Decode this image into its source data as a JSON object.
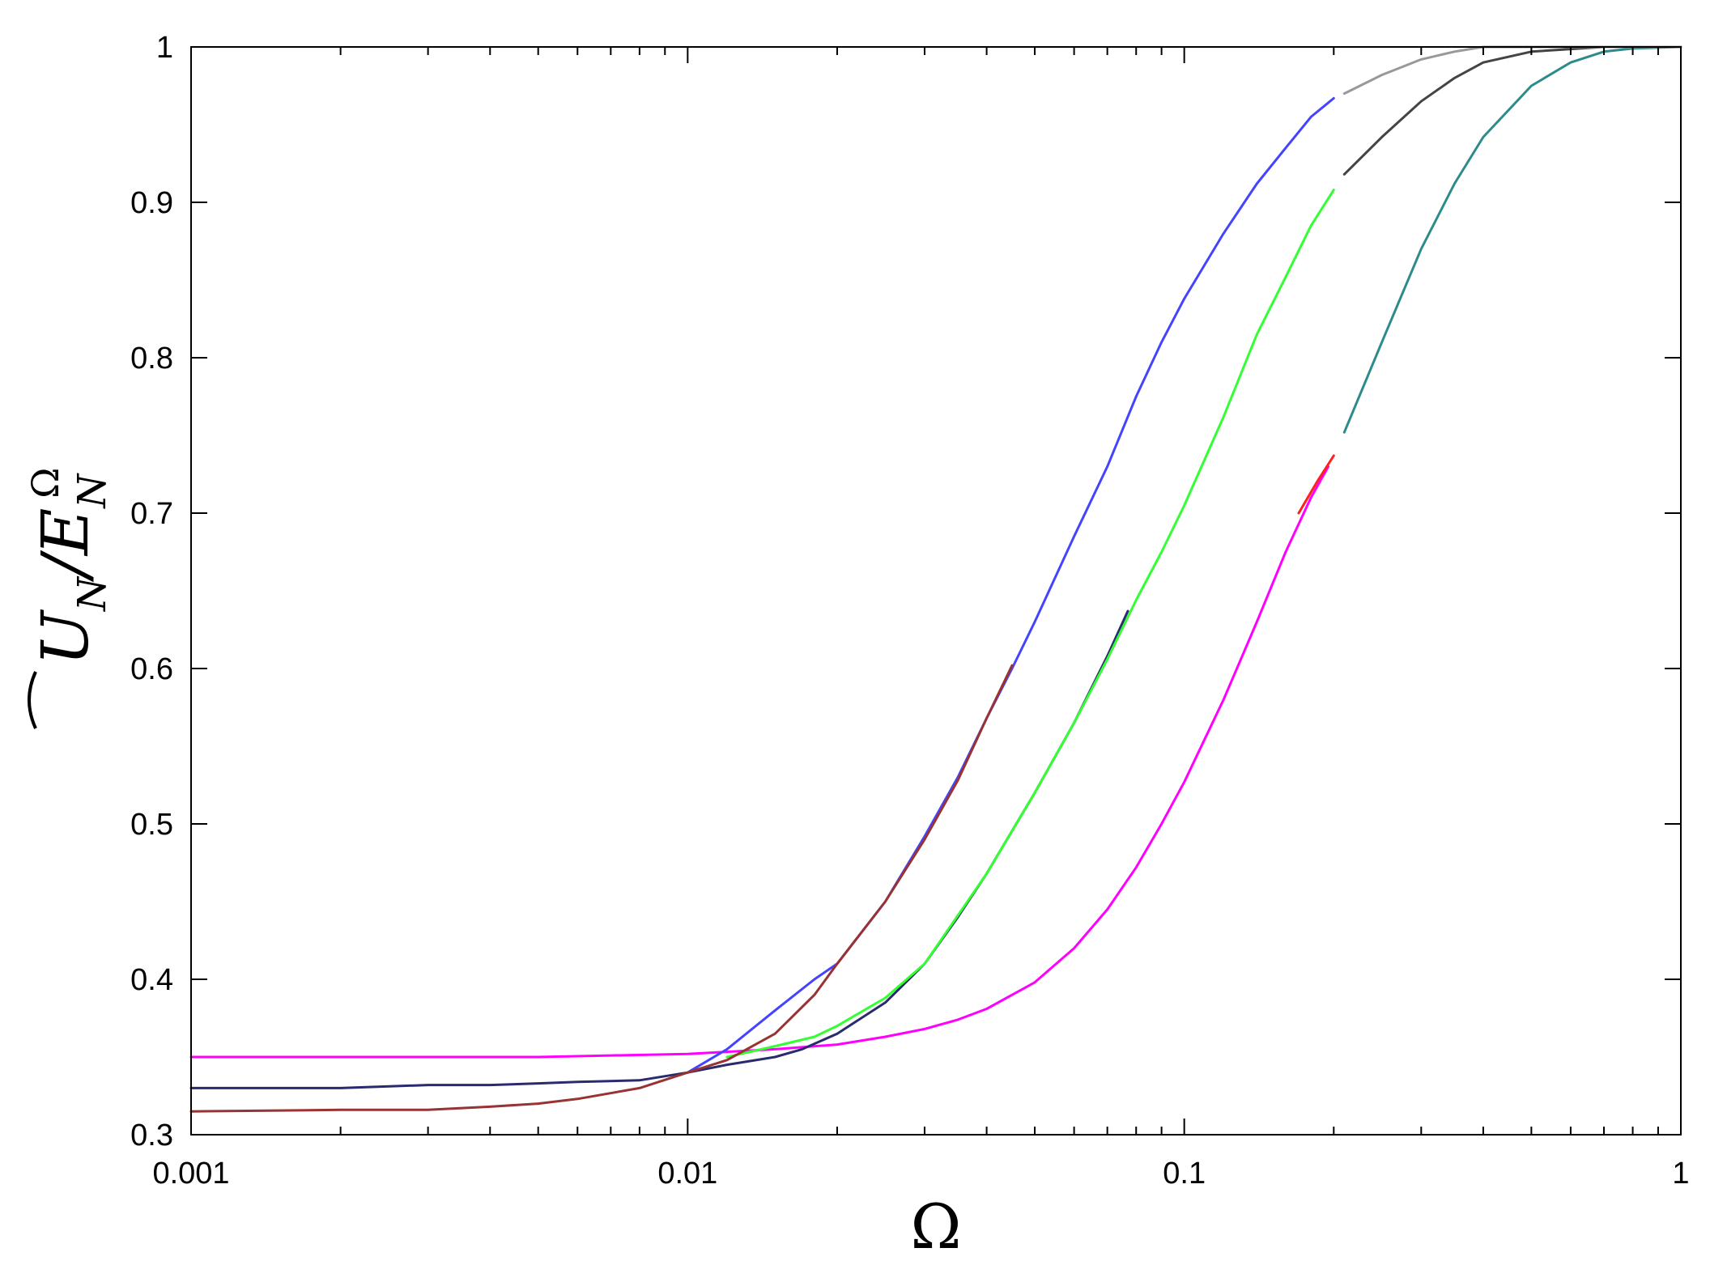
{
  "chart_data": {
    "type": "line",
    "xscale": "log",
    "xlim": [
      0.001,
      1
    ],
    "ylim": [
      0.3,
      1
    ],
    "xlabel": "Ω",
    "ylabel": {
      "base": "U",
      "sub": "N",
      "sep": "/",
      "base2": "E",
      "sub2": "N",
      "sup2": "Ω"
    },
    "xticks": [
      {
        "value": 0.001,
        "label": "0.001"
      },
      {
        "value": 0.01,
        "label": "0.01"
      },
      {
        "value": 0.1,
        "label": "0.1"
      },
      {
        "value": 1,
        "label": "1"
      }
    ],
    "yticks": [
      {
        "value": 0.3,
        "label": "0.3"
      },
      {
        "value": 0.4,
        "label": "0.4"
      },
      {
        "value": 0.5,
        "label": "0.5"
      },
      {
        "value": 0.6,
        "label": "0.6"
      },
      {
        "value": 0.7,
        "label": "0.7"
      },
      {
        "value": 0.8,
        "label": "0.8"
      },
      {
        "value": 0.9,
        "label": "0.9"
      },
      {
        "value": 1,
        "label": "1"
      }
    ],
    "grid": false,
    "series": [
      {
        "color": "#ff00ff",
        "points": [
          [
            0.001,
            0.35
          ],
          [
            0.002,
            0.35
          ],
          [
            0.003,
            0.35
          ],
          [
            0.005,
            0.35
          ],
          [
            0.007,
            0.351
          ],
          [
            0.01,
            0.352
          ],
          [
            0.015,
            0.355
          ],
          [
            0.02,
            0.358
          ],
          [
            0.025,
            0.363
          ],
          [
            0.03,
            0.368
          ],
          [
            0.035,
            0.374
          ],
          [
            0.04,
            0.381
          ],
          [
            0.05,
            0.398
          ],
          [
            0.06,
            0.42
          ],
          [
            0.07,
            0.445
          ],
          [
            0.08,
            0.472
          ],
          [
            0.09,
            0.5
          ],
          [
            0.1,
            0.527
          ],
          [
            0.12,
            0.58
          ],
          [
            0.14,
            0.63
          ],
          [
            0.16,
            0.675
          ],
          [
            0.18,
            0.71
          ],
          [
            0.195,
            0.73
          ]
        ]
      },
      {
        "color": "#ff2020",
        "points": [
          [
            0.17,
            0.7
          ],
          [
            0.185,
            0.72
          ],
          [
            0.2,
            0.737
          ]
        ]
      },
      {
        "color": "#2e8b8b",
        "points": [
          [
            0.21,
            0.752
          ],
          [
            0.25,
            0.81
          ],
          [
            0.3,
            0.87
          ],
          [
            0.35,
            0.912
          ],
          [
            0.4,
            0.942
          ],
          [
            0.5,
            0.975
          ],
          [
            0.6,
            0.99
          ],
          [
            0.7,
            0.997
          ],
          [
            0.8,
            0.999
          ],
          [
            1,
            1
          ]
        ]
      },
      {
        "color": "#2a2a6e",
        "points": [
          [
            0.001,
            0.33
          ],
          [
            0.002,
            0.33
          ],
          [
            0.003,
            0.332
          ],
          [
            0.004,
            0.332
          ],
          [
            0.005,
            0.333
          ],
          [
            0.006,
            0.334
          ],
          [
            0.008,
            0.335
          ],
          [
            0.01,
            0.34
          ],
          [
            0.012,
            0.345
          ],
          [
            0.015,
            0.35
          ],
          [
            0.017,
            0.355
          ],
          [
            0.02,
            0.365
          ],
          [
            0.025,
            0.385
          ],
          [
            0.03,
            0.41
          ],
          [
            0.035,
            0.44
          ],
          [
            0.04,
            0.468
          ],
          [
            0.05,
            0.52
          ],
          [
            0.06,
            0.565
          ],
          [
            0.07,
            0.608
          ],
          [
            0.077,
            0.637
          ]
        ]
      },
      {
        "color": "#33ff33",
        "points": [
          [
            0.012,
            0.35
          ],
          [
            0.015,
            0.357
          ],
          [
            0.018,
            0.363
          ],
          [
            0.02,
            0.37
          ],
          [
            0.025,
            0.388
          ],
          [
            0.03,
            0.41
          ],
          [
            0.04,
            0.468
          ],
          [
            0.05,
            0.52
          ],
          [
            0.06,
            0.565
          ],
          [
            0.07,
            0.606
          ],
          [
            0.08,
            0.644
          ],
          [
            0.09,
            0.675
          ],
          [
            0.1,
            0.705
          ],
          [
            0.12,
            0.762
          ],
          [
            0.14,
            0.815
          ],
          [
            0.16,
            0.852
          ],
          [
            0.18,
            0.885
          ],
          [
            0.2,
            0.908
          ]
        ]
      },
      {
        "color": "#444444",
        "points": [
          [
            0.21,
            0.918
          ],
          [
            0.25,
            0.942
          ],
          [
            0.3,
            0.965
          ],
          [
            0.35,
            0.98
          ],
          [
            0.4,
            0.99
          ],
          [
            0.5,
            0.997
          ],
          [
            0.7,
            1
          ],
          [
            1,
            1
          ]
        ]
      },
      {
        "color": "#4444ff",
        "points": [
          [
            0.01,
            0.34
          ],
          [
            0.012,
            0.355
          ],
          [
            0.015,
            0.38
          ],
          [
            0.018,
            0.4
          ],
          [
            0.02,
            0.41
          ],
          [
            0.025,
            0.45
          ],
          [
            0.03,
            0.492
          ],
          [
            0.035,
            0.53
          ],
          [
            0.04,
            0.568
          ],
          [
            0.045,
            0.6
          ],
          [
            0.05,
            0.63
          ],
          [
            0.06,
            0.685
          ],
          [
            0.07,
            0.73
          ],
          [
            0.08,
            0.775
          ],
          [
            0.09,
            0.81
          ],
          [
            0.1,
            0.838
          ],
          [
            0.12,
            0.88
          ],
          [
            0.14,
            0.912
          ],
          [
            0.16,
            0.935
          ],
          [
            0.18,
            0.955
          ],
          [
            0.2,
            0.967
          ]
        ]
      },
      {
        "color": "#999999",
        "points": [
          [
            0.21,
            0.97
          ],
          [
            0.25,
            0.982
          ],
          [
            0.3,
            0.992
          ],
          [
            0.35,
            0.997
          ],
          [
            0.4,
            1
          ],
          [
            1,
            1
          ]
        ]
      },
      {
        "color": "#993333",
        "points": [
          [
            0.001,
            0.315
          ],
          [
            0.002,
            0.316
          ],
          [
            0.003,
            0.316
          ],
          [
            0.004,
            0.318
          ],
          [
            0.005,
            0.32
          ],
          [
            0.006,
            0.323
          ],
          [
            0.008,
            0.33
          ],
          [
            0.01,
            0.34
          ],
          [
            0.012,
            0.348
          ],
          [
            0.015,
            0.365
          ],
          [
            0.018,
            0.39
          ],
          [
            0.02,
            0.41
          ],
          [
            0.025,
            0.45
          ],
          [
            0.03,
            0.49
          ],
          [
            0.035,
            0.528
          ],
          [
            0.04,
            0.568
          ],
          [
            0.045,
            0.602
          ]
        ]
      }
    ]
  }
}
